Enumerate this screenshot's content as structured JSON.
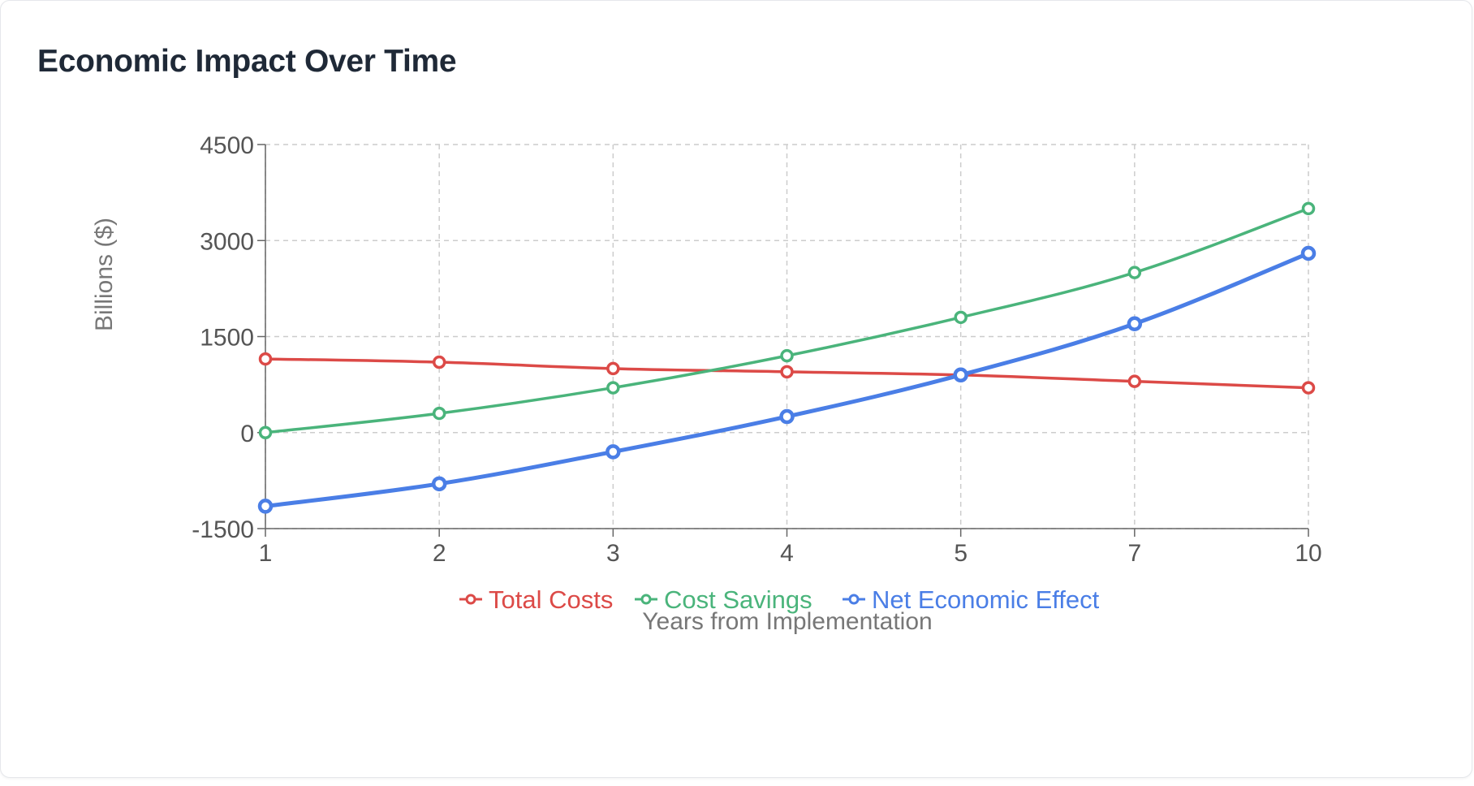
{
  "title": "Economic Impact Over Time",
  "chart_data": {
    "type": "line",
    "title": "Economic Impact Over Time",
    "xlabel": "Years from Implementation",
    "ylabel": "Billions ($)",
    "categories": [
      "1",
      "2",
      "3",
      "4",
      "5",
      "7",
      "10"
    ],
    "ylim": [
      -1500,
      4500
    ],
    "yticks": [
      "4500",
      "3000",
      "1500",
      "0",
      "-1500"
    ],
    "grid": true,
    "legend_position": "bottom",
    "series": [
      {
        "name": "Total Costs",
        "color": "#dc4a47",
        "values": [
          1150,
          1100,
          1000,
          950,
          900,
          800,
          700
        ]
      },
      {
        "name": "Cost Savings",
        "color": "#4ab47b",
        "values": [
          0,
          300,
          700,
          1200,
          1800,
          2500,
          3500
        ]
      },
      {
        "name": "Net Economic Effect",
        "color": "#4a7ee6",
        "values": [
          -1150,
          -800,
          -300,
          250,
          900,
          1700,
          2800
        ]
      }
    ]
  }
}
